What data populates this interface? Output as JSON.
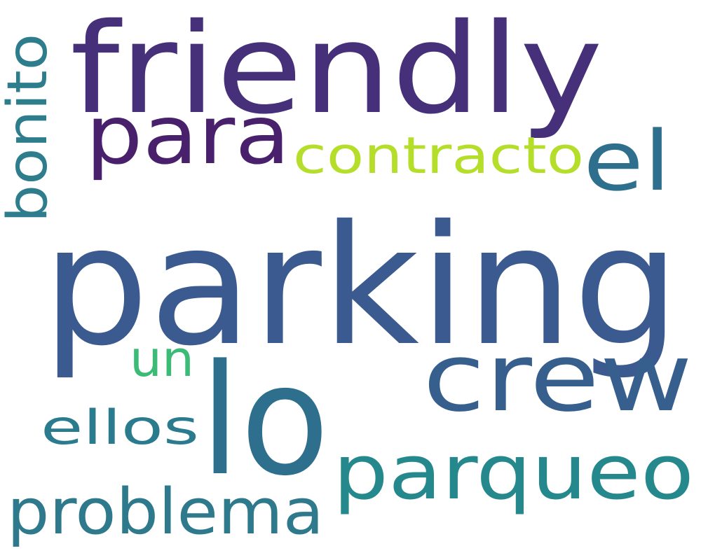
{
  "words": [
    {
      "text": "parking",
      "color": "#3b5a8f"
    },
    {
      "text": "friendly",
      "color": "#46307a"
    },
    {
      "text": "para",
      "color": "#48206b"
    },
    {
      "text": "crew",
      "color": "#365f8e"
    },
    {
      "text": "lo",
      "color": "#2e6f8e"
    },
    {
      "text": "parqueo",
      "color": "#24888d"
    },
    {
      "text": "el",
      "color": "#2e6f8e"
    },
    {
      "text": "contracto",
      "color": "#b5de2b"
    },
    {
      "text": "bonito",
      "color": "#2e7d8c"
    },
    {
      "text": "problema",
      "color": "#2e7a8c"
    },
    {
      "text": "ellos",
      "color": "#2b7b8e"
    },
    {
      "text": "un",
      "color": "#3bbb75"
    }
  ]
}
